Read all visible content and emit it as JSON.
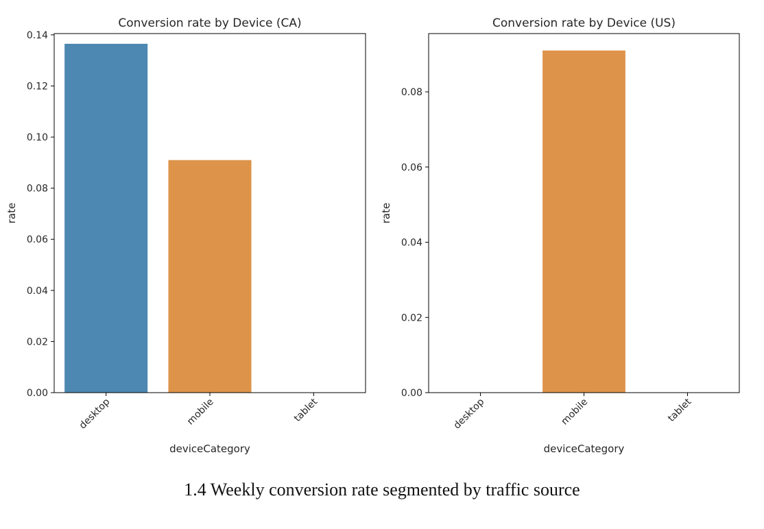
{
  "chart_data": [
    {
      "type": "bar",
      "title": "Conversion rate by Device (CA)",
      "xlabel": "deviceCategory",
      "ylabel": "rate",
      "categories": [
        "desktop",
        "mobile",
        "tablet"
      ],
      "values": [
        0.1365,
        0.091,
        0
      ],
      "ylim": [
        0,
        0.1405
      ],
      "yticks": [
        "0.00",
        "0.02",
        "0.04",
        "0.06",
        "0.08",
        "0.10",
        "0.12",
        "0.14"
      ],
      "colors": [
        "#4c88b1",
        "#dd944a",
        "#55a868"
      ],
      "grid": false
    },
    {
      "type": "bar",
      "title": "Conversion rate by Device (US)",
      "xlabel": "deviceCategory",
      "ylabel": "rate",
      "categories": [
        "desktop",
        "mobile",
        "tablet"
      ],
      "values": [
        0,
        0.091,
        0
      ],
      "ylim": [
        0,
        0.0955
      ],
      "yticks": [
        "0.00",
        "0.02",
        "0.04",
        "0.06",
        "0.08"
      ],
      "colors": [
        "#4c88b1",
        "#dd944a",
        "#55a868"
      ],
      "grid": false
    }
  ],
  "caption": "1.4 Weekly conversion rate segmented by traffic source"
}
